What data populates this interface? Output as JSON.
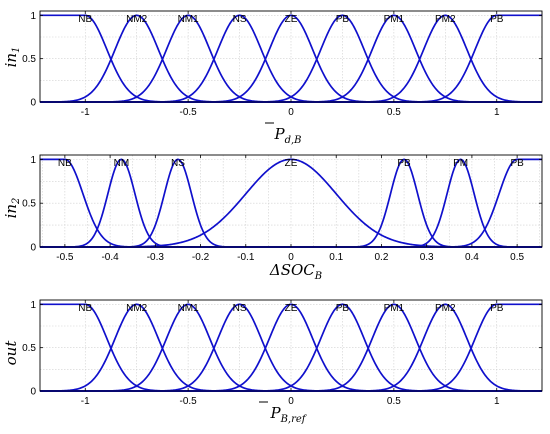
{
  "chart_data": [
    {
      "type": "line",
      "ylabel": "in1",
      "xlabel": "P̄d,B",
      "xlim": [
        -1.22,
        1.22
      ],
      "ylim": [
        0,
        1.05
      ],
      "grid": true,
      "xticks": [
        -1,
        -0.5,
        0,
        0.5,
        1
      ],
      "xtick_labels": [
        "-1",
        "-0.5",
        "0",
        "0.5",
        "1"
      ],
      "yticks": [
        0,
        0.5,
        1
      ],
      "ytick_labels": [
        "0",
        "0.5",
        "1"
      ],
      "line_color": "#1010cc",
      "series": [
        {
          "name": "NB",
          "shape": "z",
          "center": -1,
          "width": 0.105
        },
        {
          "name": "NM2",
          "shape": "gauss",
          "center": -0.75,
          "width": 0.105
        },
        {
          "name": "NM1",
          "shape": "gauss",
          "center": -0.5,
          "width": 0.105
        },
        {
          "name": "NS",
          "shape": "gauss",
          "center": -0.25,
          "width": 0.105
        },
        {
          "name": "ZE",
          "shape": "gauss",
          "center": 0,
          "width": 0.105
        },
        {
          "name": "PB",
          "shape": "gauss",
          "center": 0.25,
          "width": 0.105
        },
        {
          "name": "PM1",
          "shape": "gauss",
          "center": 0.5,
          "width": 0.105
        },
        {
          "name": "PM2",
          "shape": "gauss",
          "center": 0.75,
          "width": 0.105
        },
        {
          "name": "PB",
          "shape": "s",
          "center": 1,
          "width": 0.105
        }
      ]
    },
    {
      "type": "line",
      "ylabel": "in2",
      "xlabel": "ΔSOCB",
      "xlim": [
        -0.555,
        0.555
      ],
      "ylim": [
        0,
        1.05
      ],
      "grid": true,
      "xticks": [
        -0.5,
        -0.4,
        -0.3,
        -0.2,
        -0.1,
        0,
        0.1,
        0.2,
        0.3,
        0.4,
        0.5
      ],
      "xtick_labels": [
        "-0.5",
        "-0.4",
        "-0.3",
        "-0.2",
        "-0.1",
        "0",
        "0.1",
        "0.2",
        "0.3",
        "0.4",
        "0.5"
      ],
      "yticks": [
        0,
        0.5,
        1
      ],
      "ytick_labels": [
        "0",
        "0.5",
        "1"
      ],
      "line_color": "#1010cc",
      "series": [
        {
          "name": "NB",
          "shape": "z",
          "center": -0.5,
          "width": 0.04
        },
        {
          "name": "NM",
          "shape": "gauss",
          "center": -0.375,
          "width": 0.03
        },
        {
          "name": "NS",
          "shape": "gauss",
          "center": -0.25,
          "width": 0.03
        },
        {
          "name": "ZE",
          "shape": "gauss",
          "center": 0,
          "width": 0.1
        },
        {
          "name": "PB",
          "shape": "gauss",
          "center": 0.25,
          "width": 0.03
        },
        {
          "name": "PM",
          "shape": "gauss",
          "center": 0.375,
          "width": 0.03
        },
        {
          "name": "PB",
          "shape": "s",
          "center": 0.5,
          "width": 0.04
        }
      ]
    },
    {
      "type": "line",
      "ylabel": "out",
      "xlabel": "P̄B,ref",
      "xlim": [
        -1.22,
        1.22
      ],
      "ylim": [
        0,
        1.05
      ],
      "grid": true,
      "xticks": [
        -1,
        -0.5,
        0,
        0.5,
        1
      ],
      "xtick_labels": [
        "-1",
        "-0.5",
        "0",
        "0.5",
        "1"
      ],
      "yticks": [
        0,
        0.5,
        1
      ],
      "ytick_labels": [
        "0",
        "0.5",
        "1"
      ],
      "line_color": "#1010cc",
      "series": [
        {
          "name": "NB",
          "shape": "z",
          "center": -1,
          "width": 0.105
        },
        {
          "name": "NM2",
          "shape": "gauss",
          "center": -0.75,
          "width": 0.105
        },
        {
          "name": "NM1",
          "shape": "gauss",
          "center": -0.5,
          "width": 0.105
        },
        {
          "name": "NS",
          "shape": "gauss",
          "center": -0.25,
          "width": 0.105
        },
        {
          "name": "ZE",
          "shape": "gauss",
          "center": 0,
          "width": 0.105
        },
        {
          "name": "PB",
          "shape": "gauss",
          "center": 0.25,
          "width": 0.105
        },
        {
          "name": "PM1",
          "shape": "gauss",
          "center": 0.5,
          "width": 0.105
        },
        {
          "name": "PM2",
          "shape": "gauss",
          "center": 0.75,
          "width": 0.105
        },
        {
          "name": "PB",
          "shape": "s",
          "center": 1,
          "width": 0.105
        }
      ]
    }
  ]
}
